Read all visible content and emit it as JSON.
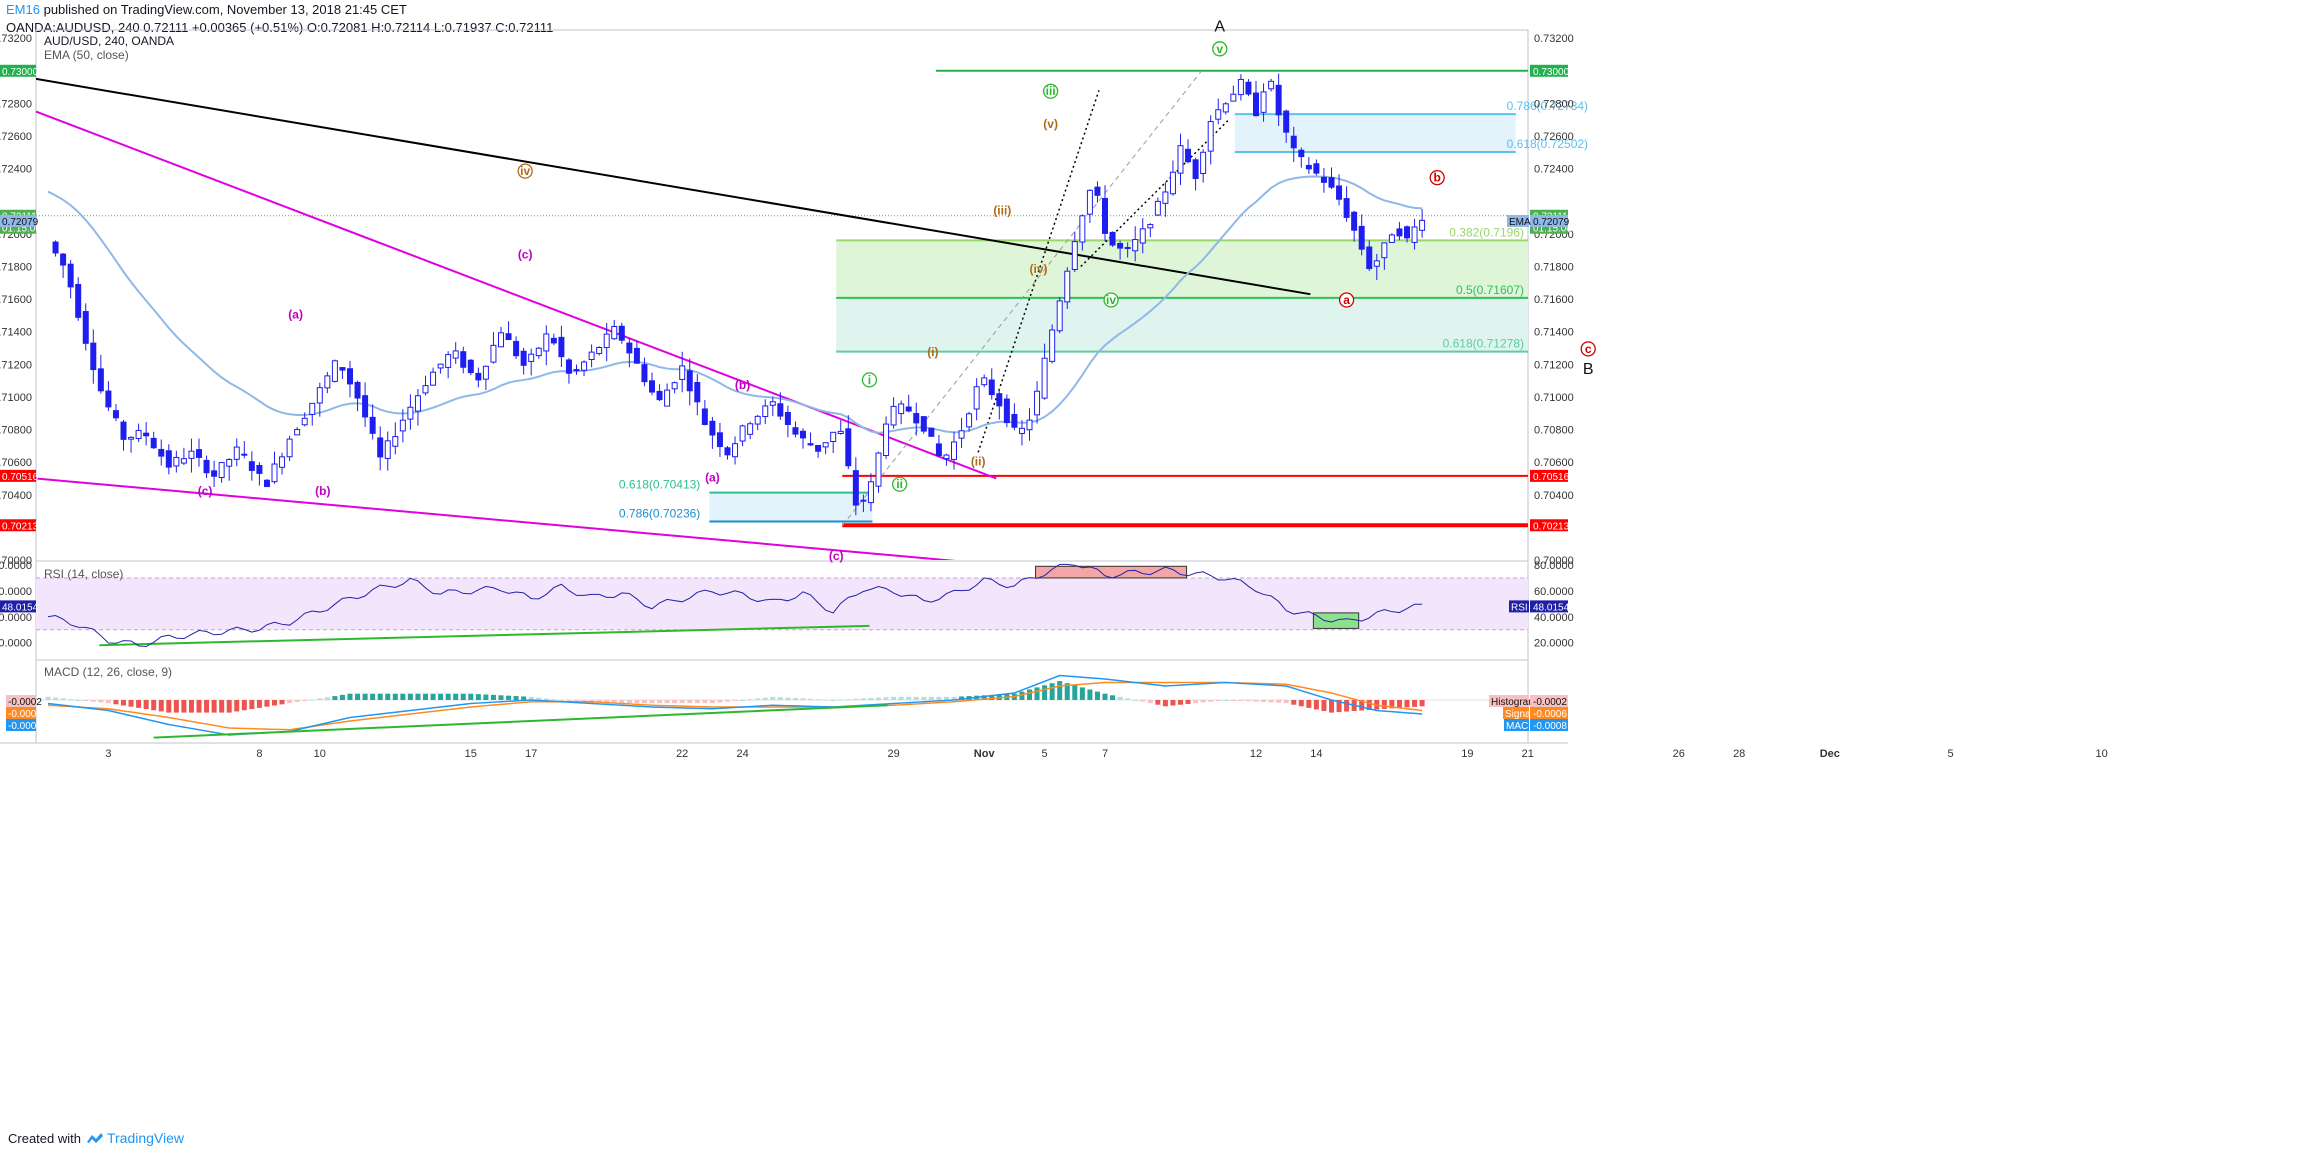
{
  "header": {
    "publisher": "EM16",
    "published_text": "published on TradingView.com, November 13, 2018 21:45 CET",
    "ohlc_line": "OANDA:AUDUSD, 240  0.72111  +0.00365 (+0.51%)  O:0.72081  H:0.72114  L:0.71937  C:0.72111"
  },
  "legend": {
    "symbol": "AUD/USD, 240, OANDA",
    "ema": "EMA (50, close)",
    "rsi": "RSI (14, close)",
    "macd": "MACD (12, 26, close, 9)"
  },
  "footer": {
    "created_with": "Created with",
    "brand": "TradingView"
  },
  "colors": {
    "candle": "#1e1ef0",
    "ema": "#8fb8e8",
    "trendline_black": "#000000",
    "wedge": "#e000e0",
    "green_level": "#22b14c",
    "red_level": "#ff0000",
    "fib_green_fill": "#dff5d8",
    "fib_teal_fill": "#dff4ef",
    "fib_blue_fill": "#e2f3fb",
    "rsi_band": "#f3e5fb",
    "macd_line": "#2196f3",
    "signal_line": "#ff8a1f"
  },
  "chart_data": [
    {
      "type": "candlestick",
      "title": "AUD/USD, 240, OANDA",
      "ylim": [
        0.7,
        0.7325
      ],
      "y_ticks": [
        "0.70000",
        "0.70400",
        "0.70600",
        "0.70800",
        "0.71000",
        "0.71200",
        "0.71400",
        "0.71600",
        "0.71800",
        "0.72000",
        "0.72400",
        "0.72600",
        "0.72800",
        "0.73200"
      ],
      "x_ticks": [
        {
          "label": "3",
          "x": 2
        },
        {
          "label": "8",
          "x": 7
        },
        {
          "label": "10",
          "x": 9
        },
        {
          "label": "15",
          "x": 14
        },
        {
          "label": "17",
          "x": 16
        },
        {
          "label": "22",
          "x": 21
        },
        {
          "label": "24",
          "x": 23
        },
        {
          "label": "29",
          "x": 28
        },
        {
          "label": "Nov",
          "x": 31
        },
        {
          "label": "5",
          "x": 33
        },
        {
          "label": "7",
          "x": 35
        },
        {
          "label": "12",
          "x": 40
        },
        {
          "label": "14",
          "x": 42
        },
        {
          "label": "19",
          "x": 47
        },
        {
          "label": "21",
          "x": 49
        },
        {
          "label": "26",
          "x": 54
        },
        {
          "label": "28",
          "x": 56
        },
        {
          "label": "Dec",
          "x": 59
        },
        {
          "label": "5",
          "x": 63
        },
        {
          "label": "10",
          "x": 68
        }
      ],
      "close_path": [
        [
          0,
          0.7195
        ],
        [
          0.6,
          0.7178
        ],
        [
          1.2,
          0.7138
        ],
        [
          1.8,
          0.7101
        ],
        [
          2.5,
          0.7075
        ],
        [
          3.2,
          0.7078
        ],
        [
          4,
          0.7058
        ],
        [
          4.7,
          0.7066
        ],
        [
          5.5,
          0.7052
        ],
        [
          6.3,
          0.7068
        ],
        [
          7.2,
          0.7046
        ],
        [
          8,
          0.7075
        ],
        [
          8.8,
          0.7098
        ],
        [
          9.6,
          0.7123
        ],
        [
          10.3,
          0.7098
        ],
        [
          11,
          0.7062
        ],
        [
          11.8,
          0.7088
        ],
        [
          12.6,
          0.7112
        ],
        [
          13.4,
          0.7128
        ],
        [
          14.2,
          0.711
        ],
        [
          15,
          0.7141
        ],
        [
          15.8,
          0.7118
        ],
        [
          16.6,
          0.714
        ],
        [
          17.3,
          0.7112
        ],
        [
          18,
          0.7126
        ],
        [
          18.8,
          0.7142
        ],
        [
          19.5,
          0.712
        ],
        [
          20.2,
          0.7096
        ],
        [
          21,
          0.7118
        ],
        [
          21.8,
          0.7082
        ],
        [
          22.5,
          0.7066
        ],
        [
          23.2,
          0.7085
        ],
        [
          24,
          0.7096
        ],
        [
          24.8,
          0.7076
        ],
        [
          25.5,
          0.7068
        ],
        [
          26.2,
          0.7082
        ],
        [
          26.8,
          0.703
        ],
        [
          27.3,
          0.7048
        ],
        [
          27.8,
          0.709
        ],
        [
          28.4,
          0.7094
        ],
        [
          29,
          0.7082
        ],
        [
          29.6,
          0.706
        ],
        [
          30.2,
          0.7078
        ],
        [
          30.9,
          0.7112
        ],
        [
          31.5,
          0.7096
        ],
        [
          32.1,
          0.7075
        ],
        [
          32.6,
          0.709
        ],
        [
          33.1,
          0.713
        ],
        [
          33.6,
          0.7168
        ],
        [
          34.1,
          0.7205
        ],
        [
          34.6,
          0.7232
        ],
        [
          35.1,
          0.7195
        ],
        [
          35.7,
          0.7188
        ],
        [
          36.3,
          0.7202
        ],
        [
          36.9,
          0.7222
        ],
        [
          37.5,
          0.7252
        ],
        [
          38,
          0.7236
        ],
        [
          38.5,
          0.727
        ],
        [
          39,
          0.7282
        ],
        [
          39.5,
          0.7292
        ],
        [
          40,
          0.7275
        ],
        [
          40.4,
          0.7298
        ],
        [
          40.8,
          0.727
        ],
        [
          41.3,
          0.7248
        ],
        [
          41.8,
          0.724
        ],
        [
          42.3,
          0.7232
        ],
        [
          42.8,
          0.722
        ],
        [
          43.3,
          0.72
        ],
        [
          43.8,
          0.7178
        ],
        [
          44.2,
          0.719
        ],
        [
          44.6,
          0.7205
        ],
        [
          45,
          0.7196
        ],
        [
          45.5,
          0.7211
        ]
      ],
      "last_price": "0.72111",
      "countdown": "01:15:00",
      "ema_value": "0.72079",
      "ema_tag": "EMA",
      "price_levels": [
        {
          "label": "0.73000",
          "value": 0.73,
          "color": "#22b14c"
        },
        {
          "label": "0.70516",
          "value": 0.70516,
          "color": "#ff0000"
        },
        {
          "label": "0.70213",
          "value": 0.70213,
          "color": "#ff0000"
        }
      ],
      "fib_levels": [
        {
          "label": "0.786(0.72734)",
          "value": 0.72734
        },
        {
          "label": "0.618(0.72502)",
          "value": 0.72502
        },
        {
          "label": "0.382(0.7196)",
          "value": 0.7196
        },
        {
          "label": "0.5(0.71607)",
          "value": 0.71607
        },
        {
          "label": "0.618(0.71278)",
          "value": 0.71278
        },
        {
          "label": "0.618(0.70413)",
          "value": 0.70413
        },
        {
          "label": "0.786(0.70236)",
          "value": 0.70236
        }
      ],
      "wave_labels": [
        {
          "text": "A",
          "x": 38.8,
          "y": 0.7324
        },
        {
          "text": "B",
          "x": 51,
          "y": 0.7114
        },
        {
          "text": "v",
          "x": 38.8,
          "y": 0.7311
        },
        {
          "text": "iii",
          "x": 33.2,
          "y": 0.7285
        },
        {
          "text": "i",
          "x": 27.2,
          "y": 0.7108
        },
        {
          "text": "ii",
          "x": 28.2,
          "y": 0.7044
        },
        {
          "text": "iv",
          "x": 35.2,
          "y": 0.7157
        },
        {
          "text": "iv",
          "x": 15.8,
          "y": 0.7236
        },
        {
          "text": "(v)",
          "x": 33.2,
          "y": 0.7265
        },
        {
          "text": "(iii)",
          "x": 31.6,
          "y": 0.7212
        },
        {
          "text": "(iv)",
          "x": 32.8,
          "y": 0.7176
        },
        {
          "text": "(i)",
          "x": 29.3,
          "y": 0.7125
        },
        {
          "text": "(ii)",
          "x": 30.8,
          "y": 0.7058
        },
        {
          "text": "(c)",
          "x": 15.8,
          "y": 0.7185
        },
        {
          "text": "(a)",
          "x": 8.2,
          "y": 0.7148
        },
        {
          "text": "(b)",
          "x": 23,
          "y": 0.7105
        },
        {
          "text": "(c)",
          "x": 5.2,
          "y": 0.704
        },
        {
          "text": "(b)",
          "x": 9.1,
          "y": 0.704
        },
        {
          "text": "(a)",
          "x": 22,
          "y": 0.7048
        },
        {
          "text": "(c)",
          "x": 26.1,
          "y": 0.7
        },
        {
          "text": "a",
          "x": 43,
          "y": 0.7157
        },
        {
          "text": "b",
          "x": 46,
          "y": 0.7232
        },
        {
          "text": "c",
          "x": 51,
          "y": 0.7127
        }
      ]
    },
    {
      "type": "line",
      "title": "RSI (14, close)",
      "ylim": [
        12,
        80
      ],
      "y_ticks": [
        "80.0000",
        "60.0000",
        "40.0000",
        "20.0000"
      ],
      "bands": [
        70,
        30
      ],
      "last_value": "48.0154",
      "tag": "RSI",
      "values": [
        [
          0,
          40
        ],
        [
          1,
          34
        ],
        [
          2,
          22
        ],
        [
          3,
          18
        ],
        [
          4,
          24
        ],
        [
          5,
          27
        ],
        [
          6,
          29
        ],
        [
          7,
          31
        ],
        [
          8,
          36
        ],
        [
          9,
          45
        ],
        [
          10,
          54
        ],
        [
          11,
          62
        ],
        [
          12,
          68
        ],
        [
          13,
          58
        ],
        [
          14,
          60
        ],
        [
          15,
          62
        ],
        [
          16,
          54
        ],
        [
          17,
          63
        ],
        [
          18,
          55
        ],
        [
          19,
          58
        ],
        [
          20,
          48
        ],
        [
          21,
          54
        ],
        [
          22,
          60
        ],
        [
          23,
          57
        ],
        [
          24,
          51
        ],
        [
          25,
          58
        ],
        [
          26,
          44
        ],
        [
          27,
          62
        ],
        [
          28,
          60
        ],
        [
          29,
          52
        ],
        [
          30,
          58
        ],
        [
          31,
          68
        ],
        [
          32,
          64
        ],
        [
          33,
          74
        ],
        [
          34,
          82
        ],
        [
          35,
          72
        ],
        [
          36,
          74
        ],
        [
          37,
          76
        ],
        [
          38,
          73
        ],
        [
          39,
          70
        ],
        [
          40,
          62
        ],
        [
          41,
          46
        ],
        [
          42,
          40
        ],
        [
          43,
          36
        ],
        [
          44,
          42
        ],
        [
          45,
          47
        ],
        [
          45.5,
          48
        ]
      ]
    },
    {
      "type": "line",
      "title": "MACD (12, 26, close, 9)",
      "ylim": [
        -0.0022,
        0.0018
      ],
      "values_labels": {
        "histogram": "-0.0002",
        "signal": "-0.0006",
        "macd": "-0.0008"
      },
      "tags": {
        "histogram": "Histogram",
        "signal": "Signal",
        "macd": "MACD"
      },
      "macd": [
        [
          0,
          -0.0002
        ],
        [
          2,
          -0.0006
        ],
        [
          4,
          -0.0014
        ],
        [
          6,
          -0.002
        ],
        [
          8,
          -0.0018
        ],
        [
          10,
          -0.001
        ],
        [
          12,
          -0.0006
        ],
        [
          14,
          -0.0002
        ],
        [
          16,
          0.0
        ],
        [
          18,
          -0.0002
        ],
        [
          20,
          -0.0004
        ],
        [
          22,
          -0.0005
        ],
        [
          24,
          -0.0003
        ],
        [
          26,
          -0.0004
        ],
        [
          28,
          -0.0002
        ],
        [
          30,
          0.0
        ],
        [
          32,
          0.0004
        ],
        [
          33.5,
          0.0014
        ],
        [
          35,
          0.0012
        ],
        [
          37,
          0.0008
        ],
        [
          39,
          0.001
        ],
        [
          41,
          0.0008
        ],
        [
          42.5,
          0.0
        ],
        [
          44,
          -0.0006
        ],
        [
          45.5,
          -0.0008
        ]
      ],
      "signal": [
        [
          0,
          -0.0003
        ],
        [
          2,
          -0.0005
        ],
        [
          4,
          -0.001
        ],
        [
          6,
          -0.0016
        ],
        [
          8,
          -0.0017
        ],
        [
          10,
          -0.0012
        ],
        [
          12,
          -0.0008
        ],
        [
          14,
          -0.0004
        ],
        [
          16,
          -0.0001
        ],
        [
          18,
          -0.0001
        ],
        [
          20,
          -0.0003
        ],
        [
          22,
          -0.0004
        ],
        [
          24,
          -0.0004
        ],
        [
          26,
          -0.0004
        ],
        [
          28,
          -0.0003
        ],
        [
          30,
          -0.0001
        ],
        [
          32,
          0.0002
        ],
        [
          33.5,
          0.0008
        ],
        [
          35,
          0.001
        ],
        [
          37,
          0.001
        ],
        [
          39,
          0.001
        ],
        [
          41,
          0.0009
        ],
        [
          42.5,
          0.0004
        ],
        [
          44,
          -0.0003
        ],
        [
          45.5,
          -0.0006
        ]
      ]
    }
  ]
}
